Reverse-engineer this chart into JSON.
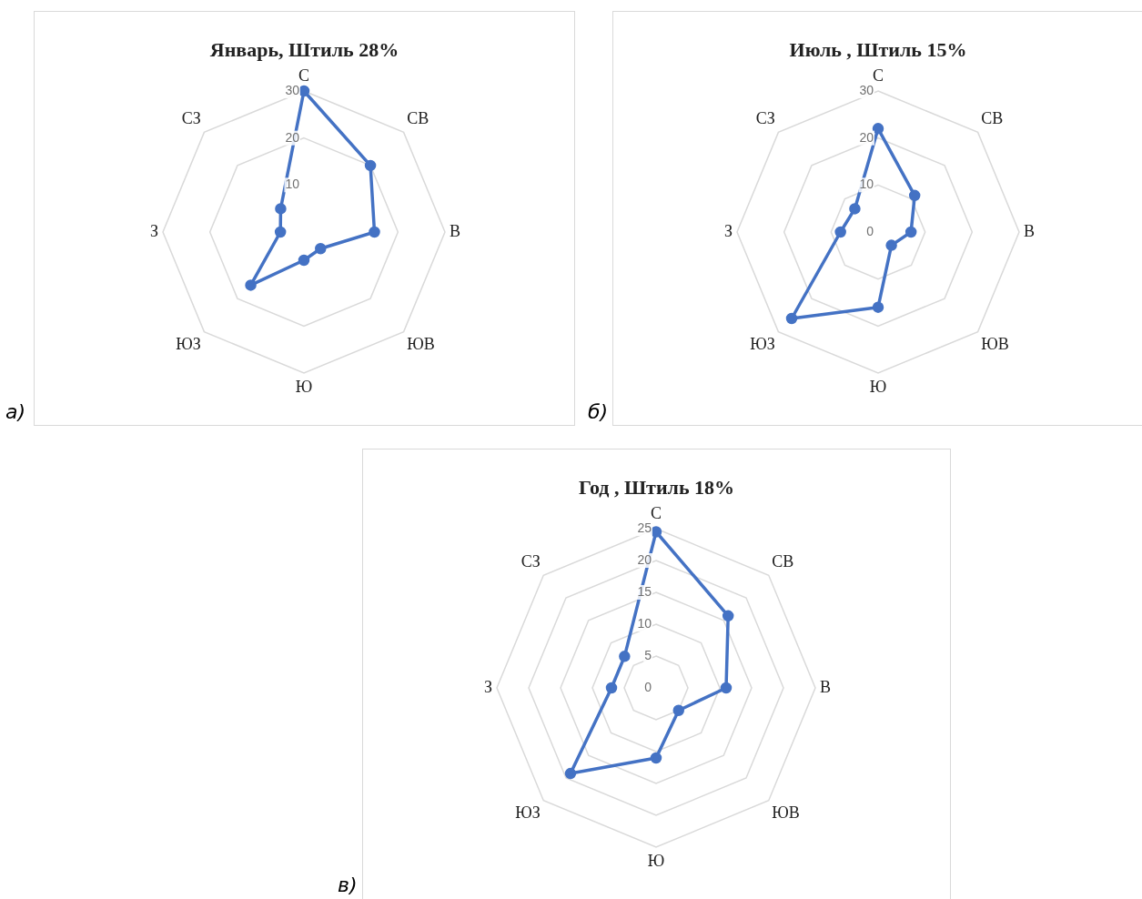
{
  "chart_data": [
    {
      "type": "radar",
      "title": "Январь, Штиль 28%",
      "categories": [
        "С",
        "СВ",
        "В",
        "ЮВ",
        "Ю",
        "ЮЗ",
        "З",
        "СЗ"
      ],
      "series": [
        {
          "color": "#4472c4",
          "values": [
            30,
            20,
            15,
            5,
            6,
            16,
            5,
            7
          ]
        }
      ],
      "ylim": [
        0,
        30
      ],
      "yticks": [
        10,
        20,
        30
      ],
      "grid": true,
      "legend": false,
      "marker": "circle",
      "annotations": [
        "а)"
      ]
    },
    {
      "type": "radar",
      "title": "Июль , Штиль 15%",
      "categories": [
        "С",
        "СВ",
        "В",
        "ЮВ",
        "Ю",
        "ЮЗ",
        "З",
        "СЗ"
      ],
      "series": [
        {
          "color": "#4472c4",
          "values": [
            22,
            11,
            7,
            4,
            16,
            26,
            8,
            7
          ]
        }
      ],
      "ylim": [
        0,
        30
      ],
      "yticks": [
        0,
        10,
        20,
        30
      ],
      "grid": true,
      "legend": false,
      "marker": "circle",
      "annotations": [
        "б)"
      ]
    },
    {
      "type": "radar",
      "title": "Год , Штиль 18%",
      "categories": [
        "С",
        "СВ",
        "В",
        "ЮВ",
        "Ю",
        "ЮЗ",
        "З",
        "СЗ"
      ],
      "series": [
        {
          "color": "#4472c4",
          "values": [
            24.5,
            16,
            11,
            5,
            11,
            19,
            7,
            7
          ]
        }
      ],
      "ylim": [
        0,
        25
      ],
      "yticks": [
        0,
        5,
        10,
        15,
        20,
        25
      ],
      "grid": true,
      "legend": false,
      "marker": "circle",
      "annotations": [
        "в)"
      ]
    }
  ]
}
